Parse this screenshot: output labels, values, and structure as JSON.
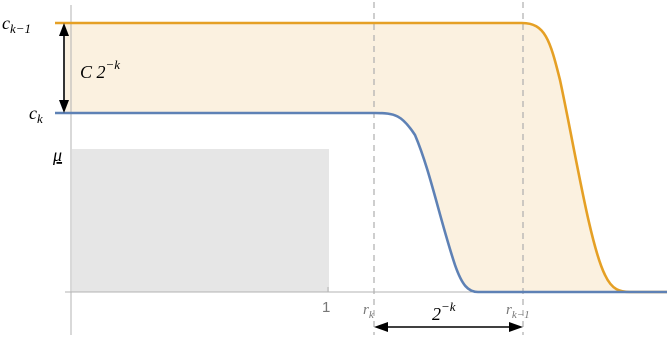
{
  "labels": {
    "c_k1_base": "c",
    "c_k1_sub": "k−1",
    "c_k_base": "c",
    "c_k_sub": "k",
    "gap_coef": "C 2",
    "gap_exp": "−k",
    "mu": "μ",
    "tick_one": "1",
    "r_k_base": "r",
    "r_k_sub": "k",
    "r_k1_base": "r",
    "r_k1_sub": "k−1",
    "width_base": "2",
    "width_exp": "−k"
  },
  "colors": {
    "orange": "#E5A025",
    "blue": "#5E81B5",
    "band_fill": "#FBF1E0",
    "gray_box": "#E6E6E6",
    "axis": "#B3B3B3",
    "dash": "#B3B3B3"
  }
}
